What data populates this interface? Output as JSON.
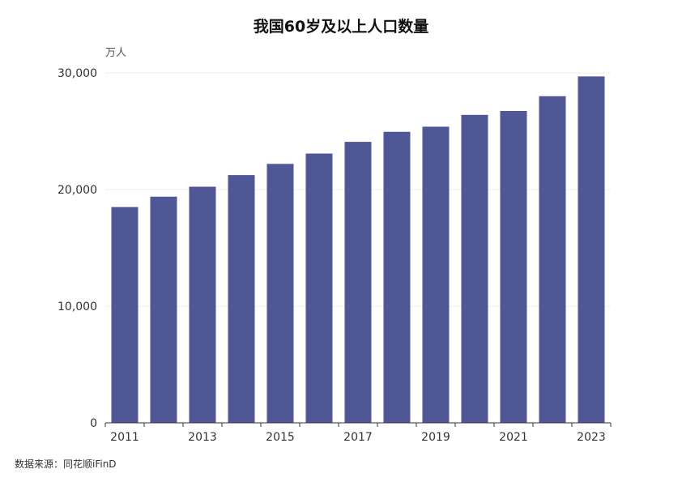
{
  "chart_data": {
    "type": "bar",
    "title": "我国60岁及以上人口数量",
    "ylabel": "万人",
    "xlabel": "",
    "categories": [
      "2011",
      "2012",
      "2013",
      "2014",
      "2015",
      "2016",
      "2017",
      "2018",
      "2019",
      "2020",
      "2021",
      "2022",
      "2023"
    ],
    "series": [
      {
        "values": [
          18499,
          19390,
          20243,
          21242,
          22200,
          23086,
          24090,
          24949,
          25388,
          26402,
          26736,
          28004,
          29697
        ]
      }
    ],
    "x_tick_labels": [
      "2011",
      "2013",
      "2015",
      "2017",
      "2019",
      "2021",
      "2023"
    ],
    "y_tick_labels": [
      "0",
      "10,000",
      "20,000",
      "30,000"
    ],
    "y_ticks": [
      0,
      10000,
      20000,
      30000
    ],
    "ylim": [
      0,
      30000
    ],
    "grid": true,
    "legend": "none",
    "bar_color": "#4f5797"
  },
  "source": "数据来源：同花顺iFinD"
}
